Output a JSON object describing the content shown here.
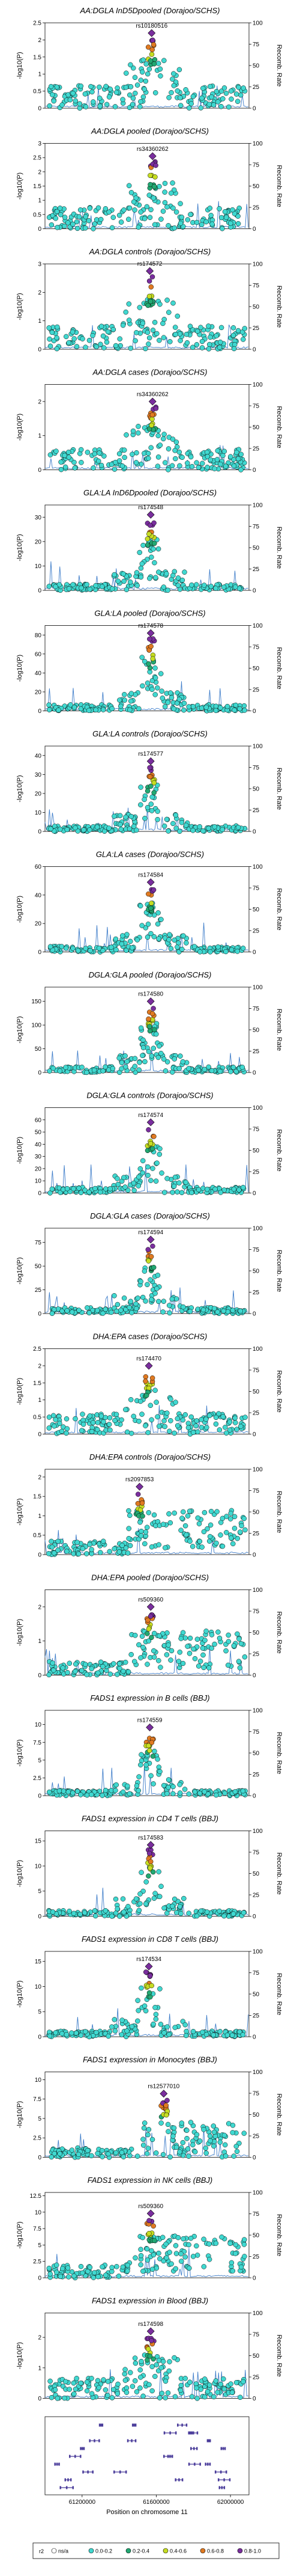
{
  "chart_data": {
    "type": "scatter",
    "x_label": "Position on chromosome 11",
    "y_label_left": "-log10(P)",
    "y_label_right": "Recomb. Rate",
    "y2_ticks": [
      0,
      25,
      50,
      75,
      100
    ],
    "x_ticks": [
      "61200000",
      "61600000",
      "62000000"
    ],
    "legend": {
      "title": "r2",
      "entries": [
        {
          "label": "ns/a",
          "color": "#ffffff"
        },
        {
          "label": "0.0-0.2",
          "color": "#40d8d0"
        },
        {
          "label": "0.2-0.4",
          "color": "#22a872"
        },
        {
          "label": "0.4-0.6",
          "color": "#c6dd22"
        },
        {
          "label": "0.6-0.8",
          "color": "#e07a22"
        },
        {
          "label": "0.8-1.0",
          "color": "#7a2e9e"
        }
      ]
    },
    "panels": [
      {
        "title": "AA:DGLA InD5Dpooled (Dorajoo/SCHS)",
        "lead_snp": "rs10180516",
        "ymax": 2.5,
        "y_ticks": [
          0,
          0.5,
          1,
          1.5,
          2,
          2.5
        ],
        "lead": [
          61575000,
          2.2
        ],
        "pattern": 0
      },
      {
        "title": "AA:DGLA pooled (Dorajoo/SCHS)",
        "lead_snp": "rs34360262",
        "ymax": 3,
        "y_ticks": [
          0,
          0.5,
          1,
          1.5,
          2,
          2.5,
          3
        ],
        "lead": [
          61580000,
          2.55
        ],
        "pattern": 1
      },
      {
        "title": "AA:DGLA controls (Dorajoo/SCHS)",
        "lead_snp": "rs174572",
        "ymax": 3,
        "y_ticks": [
          0,
          1,
          2,
          3
        ],
        "lead": [
          61565000,
          2.75
        ],
        "pattern": 2
      },
      {
        "title": "AA:DGLA cases (Dorajoo/SCHS)",
        "lead_snp": "rs34360262",
        "ymax": 2.5,
        "y_ticks": [
          0,
          1,
          2
        ],
        "lead": [
          61580000,
          2.0
        ],
        "pattern": 3
      },
      {
        "title": "GLA:LA InD6Dpooled (Dorajoo/SCHS)",
        "lead_snp": "rs174548",
        "ymax": 35,
        "y_ticks": [
          0,
          10,
          20,
          30
        ],
        "lead": [
          61570000,
          31
        ],
        "pattern": 4
      },
      {
        "title": "GLA:LA pooled (Dorajoo/SCHS)",
        "lead_snp": "rs174578",
        "ymax": 90,
        "y_ticks": [
          0,
          20,
          40,
          60,
          80
        ],
        "lead": [
          61570000,
          82
        ],
        "pattern": 4
      },
      {
        "title": "GLA:LA controls (Dorajoo/SCHS)",
        "lead_snp": "rs174577",
        "ymax": 45,
        "y_ticks": [
          0,
          10,
          20,
          30,
          40
        ],
        "lead": [
          61570000,
          37
        ],
        "pattern": 4
      },
      {
        "title": "GLA:LA cases (Dorajoo/SCHS)",
        "lead_snp": "rs174584",
        "ymax": 60,
        "y_ticks": [
          0,
          20,
          40,
          60
        ],
        "lead": [
          61570000,
          49
        ],
        "pattern": 4
      },
      {
        "title": "DGLA:GLA pooled (Dorajoo/SCHS)",
        "lead_snp": "rs174580",
        "ymax": 180,
        "y_ticks": [
          0,
          50,
          100,
          150
        ],
        "lead": [
          61570000,
          150
        ],
        "pattern": 4
      },
      {
        "title": "DGLA:GLA controls (Dorajoo/SCHS)",
        "lead_snp": "rs174574",
        "ymax": 70,
        "y_ticks": [
          0,
          10,
          20,
          30,
          40,
          50,
          60
        ],
        "lead": [
          61570000,
          58
        ],
        "pattern": 4
      },
      {
        "title": "DGLA:GLA cases (Dorajoo/SCHS)",
        "lead_snp": "rs174594",
        "ymax": 90,
        "y_ticks": [
          0,
          25,
          50,
          75
        ],
        "lead": [
          61570000,
          78
        ],
        "pattern": 4
      },
      {
        "title": "DHA:EPA cases (Dorajoo/SCHS)",
        "lead_snp": "rs174470",
        "ymax": 2.5,
        "y_ticks": [
          0,
          0.5,
          1,
          1.5,
          2,
          2.5
        ],
        "lead": [
          61560000,
          2.0
        ],
        "pattern": 5
      },
      {
        "title": "DHA:EPA controls (Dorajoo/SCHS)",
        "lead_snp": "rs2097853",
        "ymax": 2.2,
        "y_ticks": [
          0,
          0.5,
          1,
          1.5,
          2
        ],
        "lead": [
          61510000,
          1.75
        ],
        "pattern": 6
      },
      {
        "title": "DHA:EPA pooled (Dorajoo/SCHS)",
        "lead_snp": "rs509360",
        "ymax": 2.5,
        "y_ticks": [
          0,
          1,
          2
        ],
        "lead": [
          61570000,
          2.0
        ],
        "pattern": 7
      },
      {
        "title": "FADS1 expression in B cells (BBJ)",
        "lead_snp": "rs174559",
        "ymax": 12,
        "y_ticks": [
          0,
          2.5,
          5,
          7.5,
          10
        ],
        "lead": [
          61565000,
          9.6
        ],
        "pattern": 4
      },
      {
        "title": "FADS1 expression in CD4 T cells (BBJ)",
        "lead_snp": "rs174583",
        "ymax": 17,
        "y_ticks": [
          0,
          5,
          10,
          15
        ],
        "lead": [
          61570000,
          14.2
        ],
        "pattern": 4
      },
      {
        "title": "FADS1 expression in CD8 T cells (BBJ)",
        "lead_snp": "rs174534",
        "ymax": 17,
        "y_ticks": [
          0,
          5,
          10,
          15
        ],
        "lead": [
          61560000,
          14.0
        ],
        "pattern": 4
      },
      {
        "title": "FADS1 expression in Monocytes (BBJ)",
        "lead_snp": "rs12577010",
        "ymax": 11,
        "y_ticks": [
          0,
          2.5,
          5,
          7.5,
          10
        ],
        "lead": [
          61640000,
          8.2
        ],
        "pattern": 8
      },
      {
        "title": "FADS1 expression in NK cells (BBJ)",
        "lead_snp": "rs509360",
        "ymax": 13,
        "y_ticks": [
          0,
          2.5,
          5,
          7.5,
          10,
          12.5
        ],
        "lead": [
          61570000,
          9.8
        ],
        "pattern": 9
      },
      {
        "title": "FADS1 expression in Blood (BBJ)",
        "lead_snp": "rs174598",
        "ymax": 2.8,
        "y_ticks": [
          0,
          1,
          2
        ],
        "lead": [
          61570000,
          2.2
        ],
        "pattern": 5
      }
    ],
    "x_range": [
      61000000,
      62100000
    ]
  }
}
